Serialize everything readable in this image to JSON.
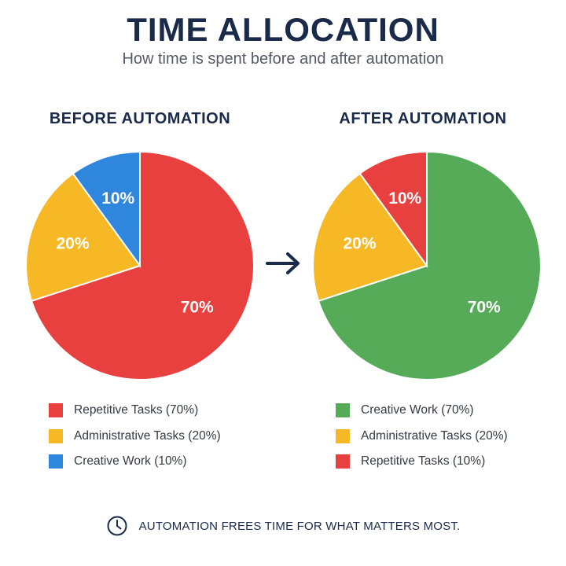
{
  "header": {
    "title": "TIME ALLOCATION",
    "subtitle": "How time is spent before and after automation"
  },
  "footer": {
    "icon": "clock-icon",
    "text": "AUTOMATION FREES TIME FOR WHAT MATTERS MOST."
  },
  "arrow_icon": "arrow-right-icon",
  "chart_data": [
    {
      "type": "pie",
      "title": "BEFORE AUTOMATION",
      "slices": [
        {
          "label": "Repetitive Tasks",
          "value": 70,
          "display": "70%",
          "color": "#e8403f"
        },
        {
          "label": "Administrative Tasks",
          "value": 20,
          "display": "20%",
          "color": "#f7b825"
        },
        {
          "label": "Creative Work",
          "value": 10,
          "display": "10%",
          "color": "#2f86dd"
        }
      ],
      "legend": [
        {
          "text": "Repetitive Tasks (70%)",
          "color": "#e8403f"
        },
        {
          "text": "Administrative Tasks (20%)",
          "color": "#f7b825"
        },
        {
          "text": "Creative Work (10%)",
          "color": "#2f86dd"
        }
      ],
      "legend_position": "bottom"
    },
    {
      "type": "pie",
      "title": "AFTER AUTOMATION",
      "slices": [
        {
          "label": "Creative Work",
          "value": 70,
          "display": "70%",
          "color": "#55ab58"
        },
        {
          "label": "Administrative Tasks",
          "value": 20,
          "display": "20%",
          "color": "#f7b825"
        },
        {
          "label": "Repetitive Tasks",
          "value": 10,
          "display": "10%",
          "color": "#e8403f"
        }
      ],
      "legend": [
        {
          "text": "Creative Work (70%)",
          "color": "#55ab58"
        },
        {
          "text": "Administrative Tasks (20%)",
          "color": "#f7b825"
        },
        {
          "text": "Repetitive Tasks (10%)",
          "color": "#e8403f"
        }
      ],
      "legend_position": "bottom"
    }
  ]
}
